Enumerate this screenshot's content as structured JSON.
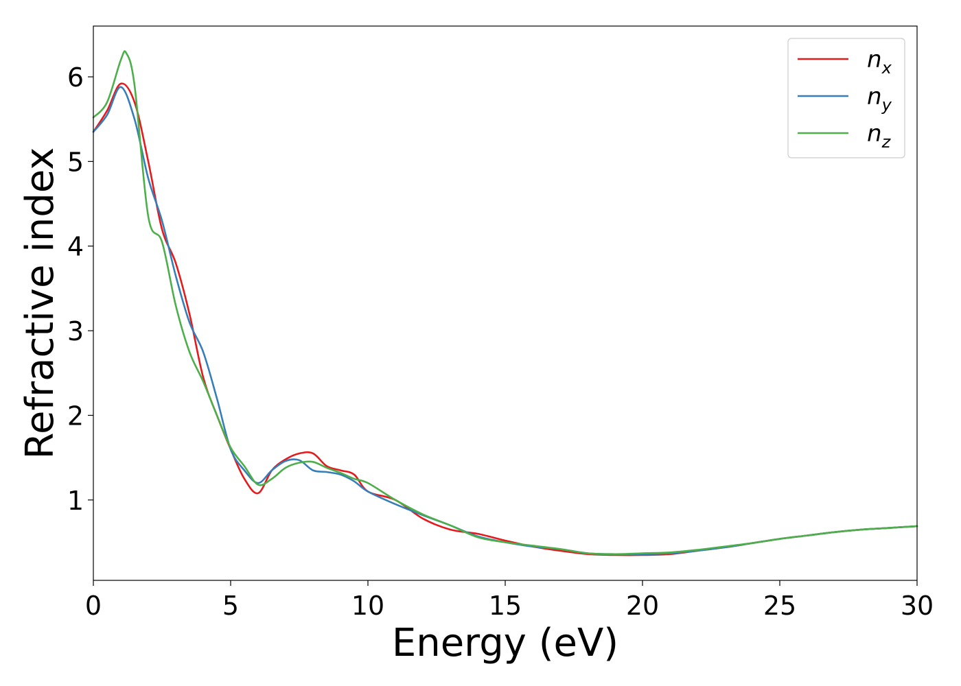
{
  "chart_data": {
    "type": "line",
    "xlabel": "Energy (eV)",
    "ylabel": "Refractive index",
    "xlim": [
      0,
      30
    ],
    "ylim": [
      0.05,
      6.6
    ],
    "xticks": [
      "0",
      "5",
      "10",
      "15",
      "20",
      "25",
      "30"
    ],
    "yticks": [
      "1",
      "2",
      "3",
      "4",
      "5",
      "6"
    ],
    "grid": false,
    "legend_position": "top-right",
    "series": [
      {
        "name": "n_x",
        "label_base": "n",
        "label_sub": "x",
        "color": "#e41a1c",
        "x": [
          0,
          0.5,
          1.0,
          1.5,
          2.0,
          2.5,
          3.0,
          3.5,
          4.0,
          4.5,
          5.0,
          5.5,
          6.0,
          6.5,
          7.0,
          7.5,
          8.0,
          8.5,
          9.0,
          9.5,
          10.0,
          11.0,
          12.0,
          13.0,
          14.0,
          15.0,
          16.0,
          17.0,
          18.0,
          19.0,
          20.0,
          21.0,
          22.0,
          23.0,
          24.0,
          25.0,
          26.0,
          27.0,
          28.0,
          29.0,
          30.0
        ],
        "y": [
          5.35,
          5.6,
          5.92,
          5.7,
          5.0,
          4.2,
          3.8,
          3.2,
          2.45,
          2.0,
          1.6,
          1.25,
          1.08,
          1.35,
          1.48,
          1.55,
          1.55,
          1.4,
          1.35,
          1.3,
          1.1,
          1.0,
          0.78,
          0.65,
          0.6,
          0.52,
          0.45,
          0.4,
          0.36,
          0.35,
          0.35,
          0.36,
          0.4,
          0.44,
          0.49,
          0.54,
          0.58,
          0.62,
          0.65,
          0.67,
          0.69
        ]
      },
      {
        "name": "n_y",
        "label_base": "n",
        "label_sub": "y",
        "color": "#377eb8",
        "x": [
          0,
          0.5,
          1.0,
          1.5,
          2.0,
          2.5,
          3.0,
          3.5,
          4.0,
          4.5,
          5.0,
          5.5,
          6.0,
          6.5,
          7.0,
          7.5,
          8.0,
          8.5,
          9.0,
          9.5,
          10.0,
          11.0,
          12.0,
          13.0,
          14.0,
          15.0,
          16.0,
          17.0,
          18.0,
          19.0,
          20.0,
          21.0,
          22.0,
          23.0,
          24.0,
          25.0,
          26.0,
          27.0,
          28.0,
          29.0,
          30.0
        ],
        "y": [
          5.35,
          5.55,
          5.88,
          5.5,
          4.8,
          4.3,
          3.65,
          3.1,
          2.75,
          2.2,
          1.6,
          1.35,
          1.2,
          1.35,
          1.46,
          1.47,
          1.35,
          1.33,
          1.3,
          1.22,
          1.1,
          0.95,
          0.82,
          0.7,
          0.57,
          0.5,
          0.45,
          0.42,
          0.37,
          0.36,
          0.36,
          0.37,
          0.4,
          0.44,
          0.49,
          0.54,
          0.58,
          0.62,
          0.65,
          0.67,
          0.69
        ]
      },
      {
        "name": "n_z",
        "label_base": "n",
        "label_sub": "z",
        "color": "#4daf4a",
        "x": [
          0,
          0.5,
          1.0,
          1.2,
          1.5,
          2.0,
          2.5,
          3.0,
          3.5,
          4.0,
          4.5,
          5.0,
          5.5,
          6.0,
          6.5,
          7.0,
          7.5,
          8.0,
          8.5,
          9.0,
          9.5,
          10.0,
          11.0,
          12.0,
          13.0,
          14.0,
          15.0,
          16.0,
          17.0,
          18.0,
          19.0,
          20.0,
          21.0,
          22.0,
          23.0,
          24.0,
          25.0,
          26.0,
          27.0,
          28.0,
          29.0,
          30.0
        ],
        "y": [
          5.52,
          5.7,
          6.2,
          6.28,
          5.9,
          4.35,
          4.05,
          3.3,
          2.75,
          2.4,
          2.0,
          1.62,
          1.4,
          1.18,
          1.25,
          1.38,
          1.44,
          1.45,
          1.38,
          1.32,
          1.25,
          1.2,
          1.0,
          0.83,
          0.7,
          0.56,
          0.5,
          0.46,
          0.42,
          0.37,
          0.36,
          0.37,
          0.38,
          0.41,
          0.45,
          0.49,
          0.54,
          0.58,
          0.62,
          0.65,
          0.67,
          0.69
        ]
      }
    ]
  }
}
